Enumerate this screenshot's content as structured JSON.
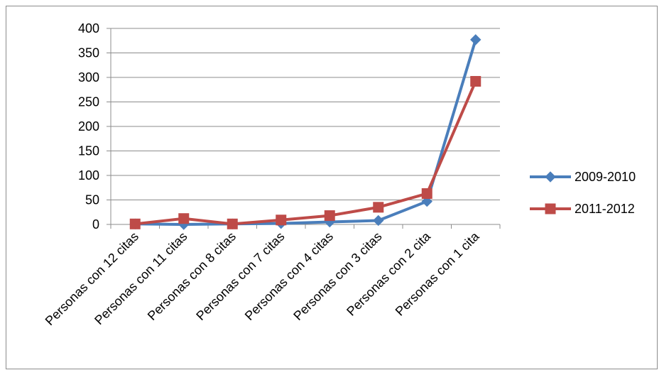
{
  "chart_data": {
    "type": "line",
    "categories": [
      "Personas con 12 citas",
      "Personas con 11 citas",
      "Personas con 8 citas",
      "Personas con 7 citas",
      "Personas con 4 citas",
      "Personas con 3 citas",
      "Personas con 2 cita",
      "Personas con 1 cita"
    ],
    "series": [
      {
        "name": "2009-2010",
        "values": [
          1,
          0,
          1,
          2,
          5,
          8,
          47,
          377
        ],
        "color": "#4a7ebb",
        "marker": "diamond"
      },
      {
        "name": "2011-2012",
        "values": [
          1,
          12,
          1,
          9,
          18,
          35,
          63,
          292
        ],
        "color": "#be4b48",
        "marker": "square"
      }
    ],
    "ylim": [
      0,
      400
    ],
    "yticks": [
      0,
      50,
      100,
      150,
      200,
      250,
      300,
      350,
      400
    ],
    "grid": true,
    "legend": "right"
  }
}
